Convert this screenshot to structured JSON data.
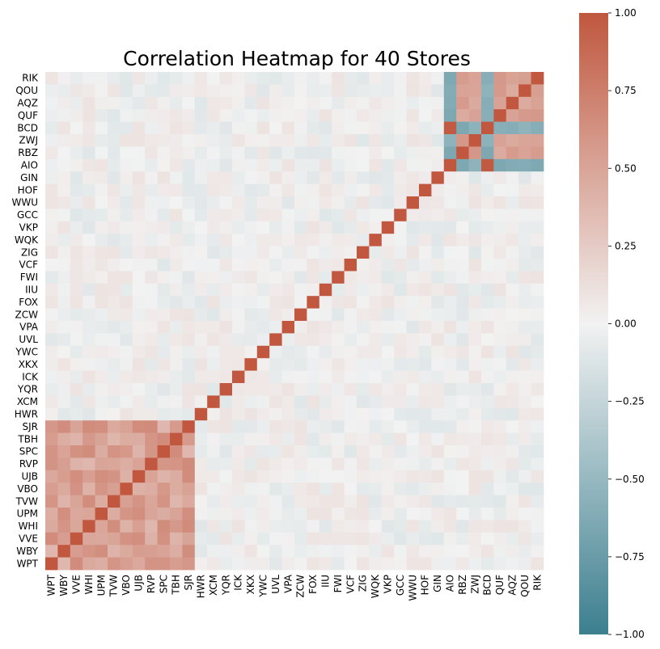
{
  "chart_data": {
    "type": "heatmap",
    "title": "Correlation Heatmap for 40 Stores",
    "xlabel": "",
    "ylabel": "",
    "labels": [
      "WPT",
      "WBY",
      "VVE",
      "WHI",
      "UPM",
      "TVW",
      "VBO",
      "UJB",
      "RVP",
      "SPC",
      "TBH",
      "SJR",
      "HWR",
      "XCM",
      "YQR",
      "ICK",
      "XKX",
      "YWC",
      "UVL",
      "VPA",
      "ZCW",
      "FOX",
      "IIU",
      "FWI",
      "VCF",
      "ZIG",
      "WQK",
      "VKP",
      "GCC",
      "WWU",
      "HOF",
      "GIN",
      "AIO",
      "RBZ",
      "ZWJ",
      "BCD",
      "QUF",
      "AQZ",
      "QOU",
      "RIK"
    ],
    "row_order": "RIK at top, WPT at bottom (reverse of column order)",
    "colorscale": {
      "name": "diverging teal-white-red",
      "low_color": "#3c7f8f",
      "mid_color": "#f2f2f2",
      "high_color": "#c0573e",
      "vmin": -1.0,
      "vmax": 1.0
    },
    "colorbar_ticks": [
      "1.00",
      "0.75",
      "0.50",
      "0.25",
      "0.00",
      "−0.25",
      "−0.50",
      "−0.75",
      "−1.00"
    ],
    "groups": [
      {
        "members": [
          "WPT",
          "WBY",
          "VVE",
          "WHI",
          "UPM",
          "TVW",
          "VBO",
          "UJB",
          "RVP",
          "SPC",
          "TBH",
          "SJR"
        ],
        "approx_intra_correlation": 0.55
      },
      {
        "members": [
          "AIO",
          "RBZ",
          "ZWJ",
          "BCD",
          "QUF",
          "AQZ",
          "QOU",
          "RIK"
        ],
        "approx_intra_correlation": 0.55,
        "note": "AIO and BCD correlate ~1.0 with each other and ~-0.6 with RBZ, ZWJ, QUF, AQZ, QOU, RIK"
      }
    ],
    "diagonal": 1.0,
    "other_cells_approx_range": [
      -0.1,
      0.1
    ]
  }
}
